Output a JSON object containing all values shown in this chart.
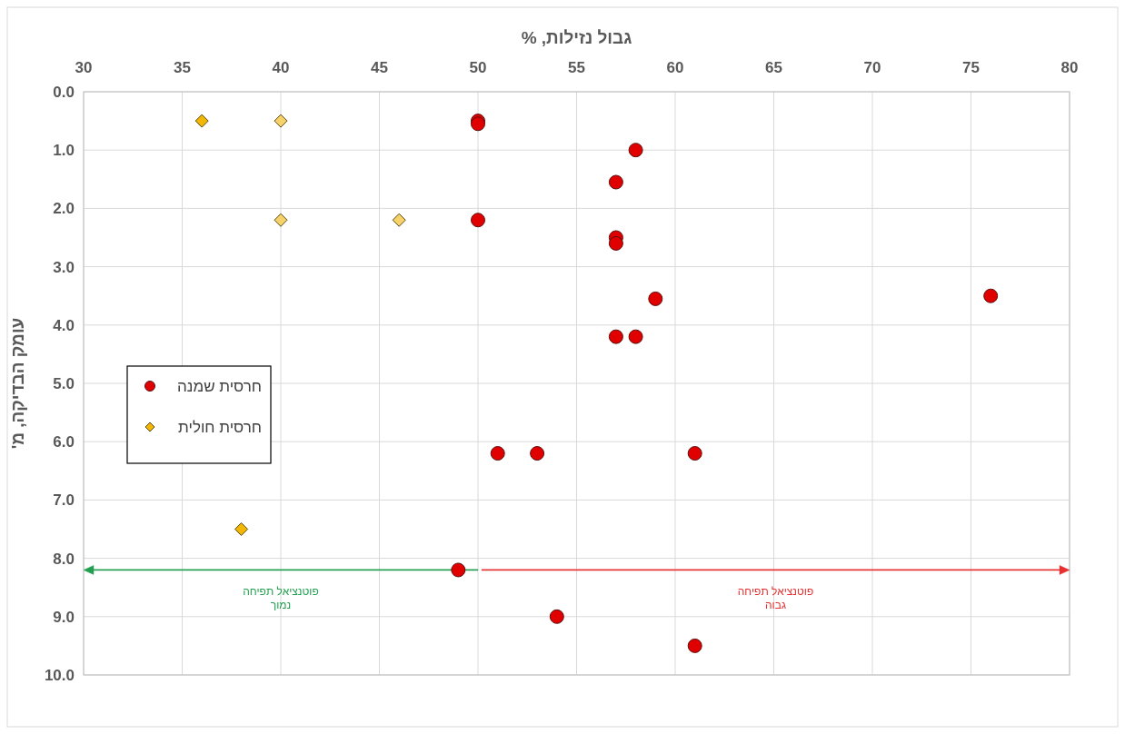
{
  "chart_data": {
    "type": "scatter",
    "xlabel": "גבול נזילות, %",
    "ylabel": "עומק הבדיקה, מ'",
    "xlim": [
      30,
      80
    ],
    "xticks": [
      30,
      35,
      40,
      45,
      50,
      55,
      60,
      65,
      70,
      75,
      80
    ],
    "ylim": [
      10,
      0
    ],
    "yticks": [
      {
        "value": 0,
        "label": "0.0"
      },
      {
        "value": 1,
        "label": "1.0"
      },
      {
        "value": 2,
        "label": "2.0"
      },
      {
        "value": 3,
        "label": "3.0"
      },
      {
        "value": 4,
        "label": "4.0"
      },
      {
        "value": 5,
        "label": "5.0"
      },
      {
        "value": 6,
        "label": "6.0"
      },
      {
        "value": 7,
        "label": "7.0"
      },
      {
        "value": 8,
        "label": "8.0"
      },
      {
        "value": 9,
        "label": "9.0"
      },
      {
        "value": 10,
        "label": "10.0"
      }
    ],
    "grid": true,
    "legend": "left",
    "series": [
      {
        "name": "חרסית שמנה",
        "color": "#e00000",
        "marker": "circle",
        "x": [
          50,
          50,
          58,
          57,
          50,
          57,
          57,
          59,
          76,
          57,
          58,
          51,
          53,
          61,
          49,
          54,
          61
        ],
        "values": [
          0.5,
          0.55,
          1.0,
          1.55,
          2.2,
          2.5,
          2.6,
          3.55,
          3.5,
          4.2,
          4.2,
          6.2,
          6.2,
          6.2,
          8.2,
          9.0,
          9.5
        ]
      },
      {
        "name": "חרסית חולית",
        "color": "#f2b705",
        "colors": [
          "#f2b705",
          "#f7d26b",
          "#f7d26b",
          "#f7d26b",
          "#f2b705"
        ],
        "marker": "diamond",
        "x": [
          36,
          40,
          40,
          46,
          38
        ],
        "values": [
          0.5,
          0.5,
          2.2,
          2.2,
          7.5
        ]
      }
    ],
    "annotations": [
      "פוטנציאל תפיחה\nנמוך",
      "פוטנציאל תפיחה\nגבוה"
    ]
  }
}
